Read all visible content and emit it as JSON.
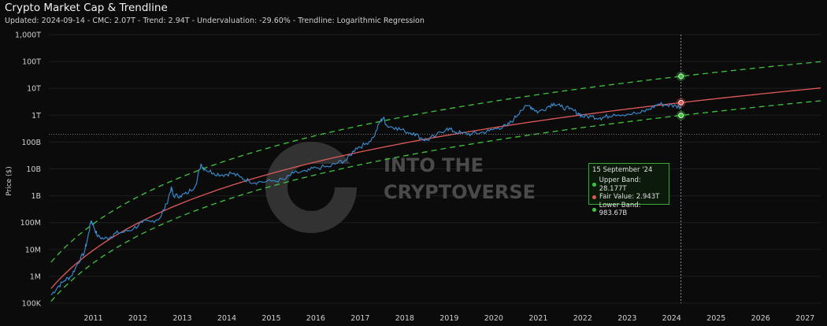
{
  "header": {
    "title": "Crypto Market Cap & Trendline",
    "subtitle": "Updated: 2024-09-14 - CMC: 2.07T - Trend: 2.94T - Undervaluation: -29.60% - Trendline: Logarithmic Regression"
  },
  "watermark": {
    "line1": "INTO THE",
    "line2": "CRYPTOVERSE"
  },
  "tooltip": {
    "date": "15 September '24",
    "rows": [
      {
        "label": "Upper Band: 28.177T",
        "color": "#3ec43e"
      },
      {
        "label": "Fair Value: 2.943T",
        "color": "#e05a5a"
      },
      {
        "label": "Lower Band: 983.67B",
        "color": "#3ec43e"
      }
    ]
  },
  "colors": {
    "price": "#3a8fd6",
    "fair": "#e05a5a",
    "band": "#3ec43e",
    "background": "#0b0b0b"
  },
  "chart_data": {
    "type": "line",
    "ylabel": "Price ($)",
    "yscale": "log",
    "ylim": [
      100000,
      1000000000000000
    ],
    "yticks": [
      {
        "value": 1000000000000000,
        "label": "1,000T"
      },
      {
        "value": 100000000000000,
        "label": "100T"
      },
      {
        "value": 10000000000000,
        "label": "10T"
      },
      {
        "value": 1000000000000,
        "label": "1T"
      },
      {
        "value": 100000000000,
        "label": "100B"
      },
      {
        "value": 10000000000,
        "label": "10B"
      },
      {
        "value": 1000000000,
        "label": "1B"
      },
      {
        "value": 100000000,
        "label": "100M"
      },
      {
        "value": 10000000,
        "label": "10M"
      },
      {
        "value": 1000000,
        "label": "1M"
      },
      {
        "value": 100000,
        "label": "100K"
      }
    ],
    "xlim": [
      2010.5,
      2027.85
    ],
    "xticks": [
      "2011",
      "2012",
      "2013",
      "2014",
      "2015",
      "2016",
      "2017",
      "2018",
      "2019",
      "2020",
      "2021",
      "2022",
      "2023",
      "2024",
      "2025",
      "2026",
      "2027"
    ],
    "current_date": 2024.71,
    "current_cmc": 2070000000000,
    "series": [
      {
        "name": "Crypto Market Cap",
        "x": [
          2010.55,
          2010.7,
          2010.85,
          2011.0,
          2011.15,
          2011.3,
          2011.38,
          2011.45,
          2011.5,
          2011.6,
          2011.75,
          2011.9,
          2012.0,
          2012.2,
          2012.4,
          2012.6,
          2012.8,
          2013.0,
          2013.15,
          2013.25,
          2013.3,
          2013.45,
          2013.6,
          2013.8,
          2013.92,
          2014.0,
          2014.2,
          2014.4,
          2014.6,
          2014.8,
          2015.0,
          2015.2,
          2015.5,
          2015.8,
          2016.0,
          2016.3,
          2016.5,
          2016.8,
          2017.0,
          2017.2,
          2017.4,
          2017.6,
          2017.8,
          2017.95,
          2018.02,
          2018.1,
          2018.3,
          2018.5,
          2018.7,
          2018.9,
          2019.0,
          2019.2,
          2019.45,
          2019.6,
          2019.8,
          2020.0,
          2020.2,
          2020.4,
          2020.6,
          2020.8,
          2020.95,
          2021.1,
          2021.3,
          2021.4,
          2021.5,
          2021.7,
          2021.85,
          2022.0,
          2022.2,
          2022.4,
          2022.5,
          2022.7,
          2022.9,
          2023.0,
          2023.2,
          2023.5,
          2023.8,
          2024.0,
          2024.2,
          2024.4,
          2024.6,
          2024.71
        ],
        "y": [
          200000,
          400000,
          700000,
          1000000,
          3000000,
          8000000,
          30000000,
          120000000,
          80000000,
          30000000,
          25000000,
          30000000,
          40000000,
          45000000,
          60000000,
          100000000,
          110000000,
          150000000,
          500000000,
          2000000000,
          1000000000,
          1000000000,
          1200000000,
          2500000000,
          15000000000,
          10000000000,
          7000000000,
          6000000000,
          7000000000,
          5000000000,
          3500000000,
          3200000000,
          3500000000,
          4000000000,
          7000000000,
          8000000000,
          11000000000,
          12000000000,
          17000000000,
          22000000000,
          60000000000,
          80000000000,
          150000000000,
          600000000000,
          800000000000,
          400000000000,
          350000000000,
          250000000000,
          220000000000,
          130000000000,
          120000000000,
          170000000000,
          330000000000,
          250000000000,
          210000000000,
          200000000000,
          220000000000,
          260000000000,
          340000000000,
          400000000000,
          700000000000,
          1500000000000,
          2300000000000,
          1700000000000,
          1300000000000,
          2000000000000,
          2800000000000,
          2100000000000,
          1700000000000,
          1200000000000,
          900000000000,
          900000000000,
          800000000000,
          850000000000,
          1100000000000,
          1100000000000,
          1200000000000,
          1700000000000,
          2600000000000,
          2400000000000,
          2200000000000,
          2070000000000
        ]
      },
      {
        "name": "Fair Value",
        "x": [
          2010.55,
          2027.85
        ],
        "note_model": "log regression"
      },
      {
        "name": "Upper Band"
      },
      {
        "name": "Lower Band"
      }
    ]
  }
}
